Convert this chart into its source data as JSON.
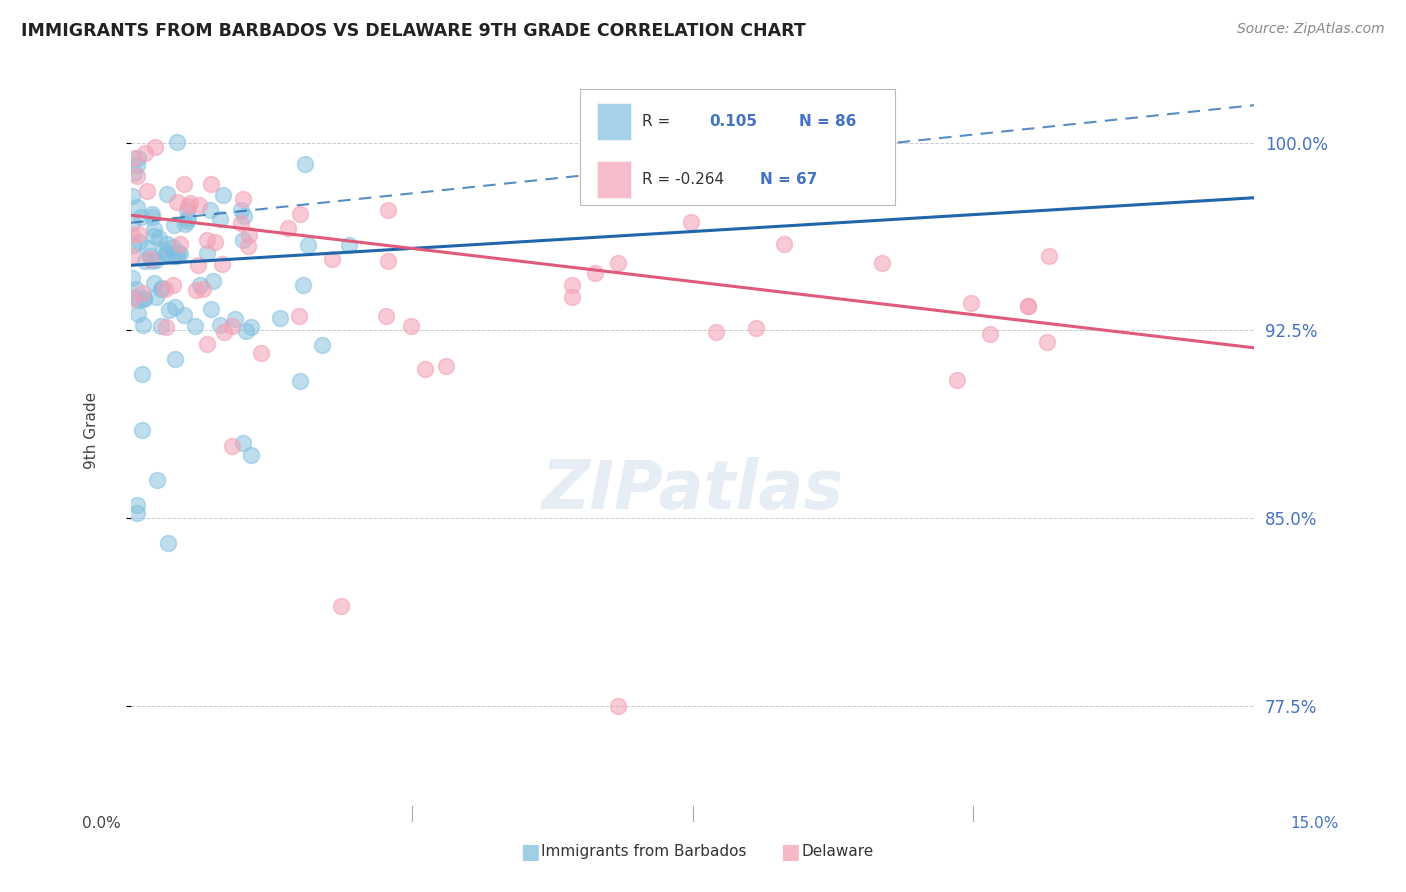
{
  "title": "IMMIGRANTS FROM BARBADOS VS DELAWARE 9TH GRADE CORRELATION CHART",
  "source": "Source: ZipAtlas.com",
  "ylabel": "9th Grade",
  "ylabel_ticks": [
    77.5,
    85.0,
    92.5,
    100.0
  ],
  "ylabel_tick_labels": [
    "77.5%",
    "85.0%",
    "92.5%",
    "100.0%"
  ],
  "xmin": 0.0,
  "xmax": 15.0,
  "ymin": 73.5,
  "ymax": 103.5,
  "blue_R": 0.105,
  "blue_N": 86,
  "pink_R": -0.264,
  "pink_N": 67,
  "blue_color": "#7fbfdf",
  "pink_color": "#f4a0b5",
  "blue_line_color": "#2166ac",
  "pink_line_color": "#e05a7a",
  "blue_line_x0": 0.0,
  "blue_line_y0": 95.1,
  "blue_line_x1": 15.0,
  "blue_line_y1": 97.8,
  "blue_dash_x0": 0.0,
  "blue_dash_y0": 96.8,
  "blue_dash_x1": 15.0,
  "blue_dash_y1": 101.5,
  "pink_line_x0": 0.0,
  "pink_line_y0": 97.1,
  "pink_line_x1": 15.0,
  "pink_line_y1": 91.8,
  "legend_blue_label": "Immigrants from Barbados",
  "legend_pink_label": "Delaware"
}
